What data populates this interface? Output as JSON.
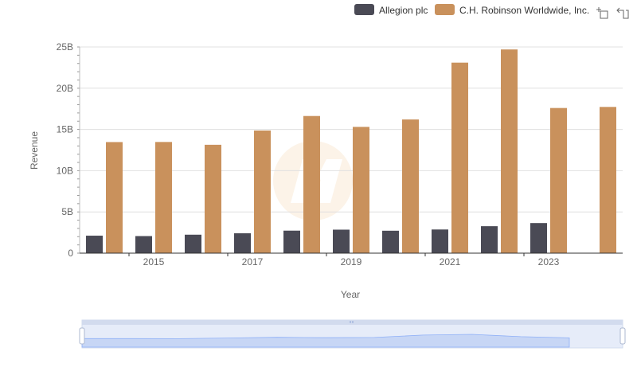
{
  "toolbar": {
    "zoom_icon": "zoom-box-icon",
    "restore_icon": "restore-icon"
  },
  "chart_data": {
    "type": "bar",
    "xlabel": "Year",
    "ylabel": "Revenue",
    "ylim": [
      0,
      25000000000
    ],
    "yticks": [
      "0",
      "5B",
      "10B",
      "15B",
      "20B",
      "25B"
    ],
    "xticks_labeled": [
      "2015",
      "2017",
      "2019",
      "2021",
      "2023"
    ],
    "categories": [
      "2014",
      "2015",
      "2016",
      "2017",
      "2018",
      "2019",
      "2020",
      "2021",
      "2022",
      "2023",
      "2024"
    ],
    "grid": true,
    "legend_position": "top-right",
    "series": [
      {
        "name": "Allegion plc",
        "color": "#4a4a55",
        "values": [
          2120000000,
          2070000000,
          2240000000,
          2410000000,
          2730000000,
          2850000000,
          2720000000,
          2870000000,
          3270000000,
          3650000000,
          null
        ]
      },
      {
        "name": "C.H. Robinson Worldwide, Inc.",
        "color": "#c9915c",
        "values": [
          13470000000,
          13480000000,
          13140000000,
          14870000000,
          16630000000,
          15310000000,
          16210000000,
          23100000000,
          24700000000,
          17600000000,
          17730000000
        ]
      }
    ]
  }
}
